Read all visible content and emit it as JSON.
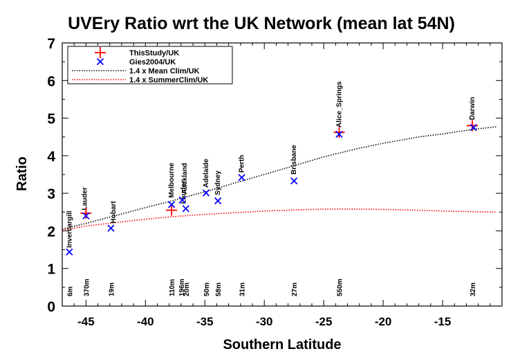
{
  "chart_data": {
    "type": "scatter",
    "title": "UVEry Ratio wrt the UK Network (mean lat  54N)",
    "xlabel": "Southern Latitude",
    "ylabel": "Ratio",
    "xlim": [
      -47,
      -10
    ],
    "ylim": [
      0,
      7
    ],
    "xticks": [
      -45,
      -40,
      -35,
      -30,
      -25,
      -20,
      -15
    ],
    "xtick_labels": [
      "-45",
      "-40",
      "-35",
      "-30",
      "-25",
      "-20",
      "-15"
    ],
    "yticks": [
      0,
      1,
      2,
      3,
      4,
      5,
      6,
      7
    ],
    "ytick_labels": [
      "0",
      "1",
      "2",
      "3",
      "4",
      "5",
      "6",
      "7"
    ],
    "grid": false,
    "legend_position": "top-left",
    "series": [
      {
        "name": "ThisStudy/UK",
        "marker": "plus",
        "color": "#ff0000",
        "points": [
          {
            "x": -45.0,
            "y": 2.47
          },
          {
            "x": -37.8,
            "y": 2.55
          },
          {
            "x": -23.7,
            "y": 4.62
          },
          {
            "x": -12.5,
            "y": 4.8
          }
        ]
      },
      {
        "name": "Gies2004/UK",
        "marker": "x",
        "color": "#0000ff",
        "points": [
          {
            "x": -46.4,
            "y": 1.44
          },
          {
            "x": -45.0,
            "y": 2.4
          },
          {
            "x": -42.9,
            "y": 2.07
          },
          {
            "x": -37.8,
            "y": 2.7
          },
          {
            "x": -36.9,
            "y": 2.82
          },
          {
            "x": -36.6,
            "y": 2.59
          },
          {
            "x": -34.9,
            "y": 3.01
          },
          {
            "x": -33.9,
            "y": 2.8
          },
          {
            "x": -31.9,
            "y": 3.42
          },
          {
            "x": -27.5,
            "y": 3.33
          },
          {
            "x": -23.7,
            "y": 4.57
          },
          {
            "x": -12.4,
            "y": 4.75
          }
        ]
      },
      {
        "name": "1.4 x Mean Clim/UK",
        "line_style": "dotted",
        "color": "#000000",
        "x": [
          -47,
          -45,
          -42,
          -40,
          -38,
          -35,
          -32,
          -30,
          -27,
          -25,
          -22,
          -20,
          -17,
          -15,
          -12.5,
          -10.5
        ],
        "y": [
          2.05,
          2.2,
          2.45,
          2.62,
          2.78,
          3.04,
          3.32,
          3.5,
          3.78,
          3.97,
          4.2,
          4.33,
          4.5,
          4.58,
          4.7,
          4.77
        ]
      },
      {
        "name": "1.4 x SummerClim/UK",
        "line_style": "dotted",
        "color": "#ff0000",
        "x": [
          -47,
          -45,
          -42,
          -40,
          -38,
          -35,
          -32,
          -30,
          -27,
          -25,
          -22,
          -20,
          -17,
          -15,
          -12.5,
          -10.5
        ],
        "y": [
          2.02,
          2.13,
          2.24,
          2.31,
          2.37,
          2.44,
          2.49,
          2.53,
          2.56,
          2.58,
          2.58,
          2.57,
          2.55,
          2.53,
          2.51,
          2.5
        ]
      }
    ],
    "site_labels": [
      {
        "text": "Invercargill",
        "x": -46.4,
        "y": 1.55
      },
      {
        "text": "Lauder",
        "x": -45.1,
        "y": 2.55
      },
      {
        "text": "Hobart",
        "x": -42.7,
        "y": 2.2
      },
      {
        "text": "Melbourne",
        "x": -37.8,
        "y": 2.88
      },
      {
        "text": "Lauder",
        "x": -36.8,
        "y": 2.72
      },
      {
        "text": "Auckland",
        "x": -36.7,
        "y": 2.98
      },
      {
        "text": "Adelaide",
        "x": -34.9,
        "y": 3.15
      },
      {
        "text": "Sydney",
        "x": -33.9,
        "y": 2.95
      },
      {
        "text": "Perth",
        "x": -31.9,
        "y": 3.55
      },
      {
        "text": "Brisbane",
        "x": -27.5,
        "y": 3.5
      },
      {
        "text": "Alice_Springs",
        "x": -23.7,
        "y": 4.75
      },
      {
        "text": "Darwin",
        "x": -12.5,
        "y": 4.95
      }
    ],
    "altitude_labels": [
      {
        "text": "6m",
        "x": -46.4
      },
      {
        "text": "370m",
        "x": -45.0
      },
      {
        "text": "19m",
        "x": -42.9
      },
      {
        "text": "110m",
        "x": -37.8
      },
      {
        "text": "196m",
        "x": -37.0
      },
      {
        "text": "20m",
        "x": -36.6
      },
      {
        "text": "50m",
        "x": -34.9
      },
      {
        "text": "58m",
        "x": -33.9
      },
      {
        "text": "31m",
        "x": -31.9
      },
      {
        "text": "27m",
        "x": -27.5
      },
      {
        "text": "550m",
        "x": -23.7
      },
      {
        "text": "32m",
        "x": -12.5
      }
    ]
  }
}
